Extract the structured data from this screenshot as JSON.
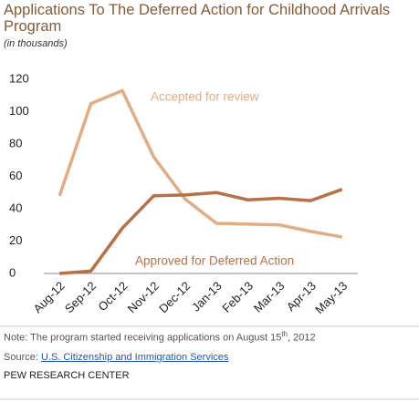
{
  "chart_data": {
    "type": "line",
    "title": "Applications To The Deferred Action for Childhood Arrivals Program",
    "subtitle": "(in thousands)",
    "categories": [
      "Aug-12",
      "Sep-12",
      "Oct-12",
      "Nov-12",
      "Dec-12",
      "Jan-13",
      "Feb-13",
      "Mar-13",
      "Apr-13",
      "May-13"
    ],
    "series": [
      {
        "name": "Accepted for review",
        "color": "#e2ad85",
        "values": [
          48,
          105,
          113,
          72,
          46,
          31,
          30.5,
          30,
          26,
          22.5
        ]
      },
      {
        "name": "Approved for Deferred Action",
        "color": "#b87045",
        "values": [
          0,
          1.5,
          28,
          48,
          48.5,
          50,
          45.5,
          46.5,
          45,
          52
        ]
      }
    ],
    "ylim": [
      0,
      120
    ],
    "yticks": [
      0,
      20,
      40,
      60,
      80,
      100,
      120
    ],
    "grid": false,
    "note": {
      "prefix": "Note: The program started receiving applications on August 15",
      "superscript": "th",
      "suffix": ", 2012"
    },
    "source": {
      "label": "Source: ",
      "link": "U.S. Citizenship and Immigration Services"
    },
    "footer": "PEW RESEARCH CENTER"
  }
}
